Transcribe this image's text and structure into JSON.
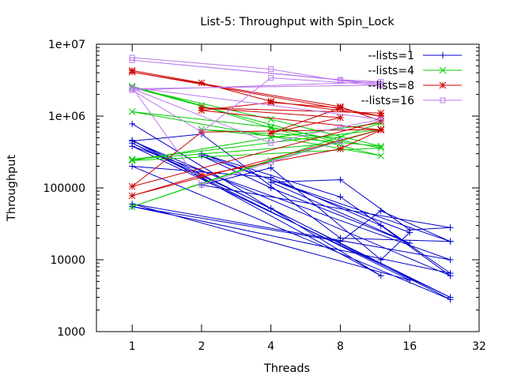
{
  "chart_data": {
    "type": "line",
    "title": "List-5: Throughput with Spin_Lock",
    "xlabel": "Threads",
    "ylabel": "Throughput",
    "x_scale": "log2",
    "y_scale": "log10",
    "xlim": [
      0.7,
      32
    ],
    "ylim": [
      1000,
      10000000
    ],
    "x_ticks": [
      {
        "value": 1,
        "label": "1"
      },
      {
        "value": 2,
        "label": "2"
      },
      {
        "value": 4,
        "label": "4"
      },
      {
        "value": 8,
        "label": "8"
      },
      {
        "value": 16,
        "label": "16"
      },
      {
        "value": 32,
        "label": "32"
      }
    ],
    "y_ticks": [
      {
        "value": 1000,
        "label": "1000"
      },
      {
        "value": 10000,
        "label": "10000"
      },
      {
        "value": 100000,
        "label": "100000"
      },
      {
        "value": 1000000,
        "label": "1e+06"
      },
      {
        "value": 10000000,
        "label": "1e+07"
      }
    ],
    "grid": false,
    "legend_position": "top-right",
    "series": [
      {
        "name": "--lists=1",
        "color": "#0000cc",
        "marker": "plus",
        "points": [
          [
            1,
            780000
          ],
          [
            12,
            6000
          ],
          [
            1,
            460000
          ],
          [
            24,
            3000
          ],
          [
            1,
            380000
          ],
          [
            24,
            10000
          ],
          [
            1,
            60000
          ],
          [
            16,
            5200
          ],
          [
            1,
            420000
          ],
          [
            4,
            52000
          ],
          [
            24,
            2800
          ],
          [
            1,
            200000
          ],
          [
            4,
            140000
          ],
          [
            12,
            30000
          ],
          [
            24,
            6000
          ],
          [
            1,
            450000
          ],
          [
            2,
            560000
          ],
          [
            8,
            20000
          ],
          [
            24,
            18000
          ],
          [
            2,
            280000
          ],
          [
            4,
            100000
          ],
          [
            16,
            17000
          ],
          [
            4,
            120000
          ],
          [
            8,
            130000
          ],
          [
            16,
            26000
          ],
          [
            24,
            28000
          ],
          [
            2,
            110000
          ],
          [
            4,
            190000
          ],
          [
            12,
            10000
          ],
          [
            16,
            24000
          ],
          [
            2,
            300000
          ],
          [
            8,
            75000
          ],
          [
            24,
            6500
          ],
          [
            1,
            55000
          ],
          [
            8,
            18000
          ],
          [
            12,
            48000
          ],
          [
            24,
            18000
          ]
        ]
      },
      {
        "name": "--lists=4",
        "color": "#00cc00",
        "marker": "x",
        "points": [
          [
            1,
            2600000
          ],
          [
            2,
            1400000
          ],
          [
            4,
            680000
          ],
          [
            12,
            280000
          ],
          [
            1,
            1150000
          ],
          [
            4,
            700000
          ],
          [
            12,
            360000
          ],
          [
            1,
            240000
          ],
          [
            4,
            500000
          ],
          [
            12,
            800000
          ],
          [
            1,
            55000
          ],
          [
            4,
            240000
          ],
          [
            12,
            650000
          ],
          [
            1,
            250000
          ],
          [
            8,
            420000
          ],
          [
            1,
            2500000
          ],
          [
            4,
            900000
          ],
          [
            12,
            380000
          ],
          [
            2,
            650000
          ],
          [
            8,
            500000
          ]
        ]
      },
      {
        "name": "--lists=8",
        "color": "#cc0000",
        "marker": "star",
        "points": [
          [
            1,
            4300000
          ],
          [
            2,
            2900000
          ],
          [
            4,
            1600000
          ],
          [
            12,
            1000000
          ],
          [
            1,
            4100000
          ],
          [
            8,
            1350000
          ],
          [
            12,
            850000
          ],
          [
            1,
            105000
          ],
          [
            2,
            600000
          ],
          [
            12,
            650000
          ],
          [
            1,
            78000
          ],
          [
            2,
            150000
          ],
          [
            8,
            350000
          ],
          [
            12,
            640000
          ],
          [
            2,
            1200000
          ],
          [
            4,
            1550000
          ],
          [
            8,
            1300000
          ],
          [
            4,
            580000
          ],
          [
            8,
            950000
          ],
          [
            2,
            1300000
          ],
          [
            12,
            1100000
          ]
        ]
      },
      {
        "name": "--lists=16",
        "color": "#bb77ee",
        "marker": "square",
        "points": [
          [
            1,
            6500000
          ],
          [
            4,
            4500000
          ],
          [
            8,
            3100000
          ],
          [
            12,
            2800000
          ],
          [
            1,
            6000000
          ],
          [
            8,
            3200000
          ],
          [
            12,
            3000000
          ],
          [
            1,
            2300000
          ],
          [
            2,
            600000
          ],
          [
            4,
            3400000
          ],
          [
            12,
            2700000
          ],
          [
            1,
            2400000
          ],
          [
            4,
            420000
          ],
          [
            8,
            700000
          ],
          [
            12,
            900000
          ],
          [
            1,
            2500000
          ],
          [
            2,
            110000
          ],
          [
            4,
            230000
          ],
          [
            8,
            450000
          ]
        ]
      }
    ]
  }
}
